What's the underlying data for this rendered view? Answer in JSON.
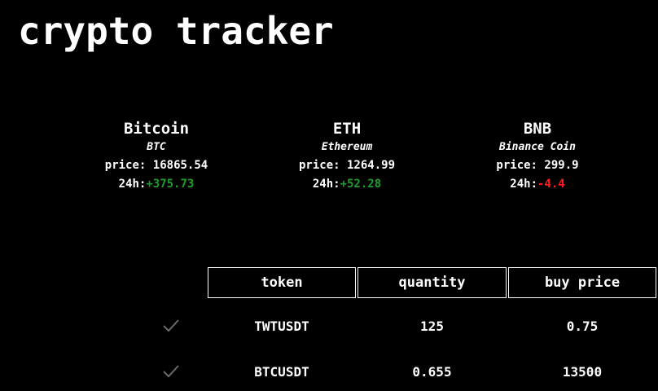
{
  "app": {
    "title": "crypto tracker"
  },
  "coins": [
    {
      "name": "Bitcoin",
      "symbol": "BTC",
      "price_label": "price:",
      "price": "16865.54",
      "change_label": "24h:",
      "change": "+375.73",
      "change_color": "#1f9d2b"
    },
    {
      "name": "ETH",
      "symbol": "Ethereum",
      "price_label": "price:",
      "price": "1264.99",
      "change_label": "24h:",
      "change": "+52.28",
      "change_color": "#1f9d2b"
    },
    {
      "name": "BNB",
      "symbol": "Binance Coin",
      "price_label": "price:",
      "price": "299.9",
      "change_label": "24h:",
      "change": "-4.4",
      "change_color": "#ff1a1a"
    }
  ],
  "holdings": {
    "headers": [
      "token",
      "quantity",
      "buy price"
    ],
    "rows": [
      {
        "token": "TWTUSDT",
        "quantity": "125",
        "buy_price": "0.75",
        "icon": "check-icon"
      },
      {
        "token": "BTCUSDT",
        "quantity": "0.655",
        "buy_price": "13500",
        "icon": "check-icon"
      }
    ]
  }
}
